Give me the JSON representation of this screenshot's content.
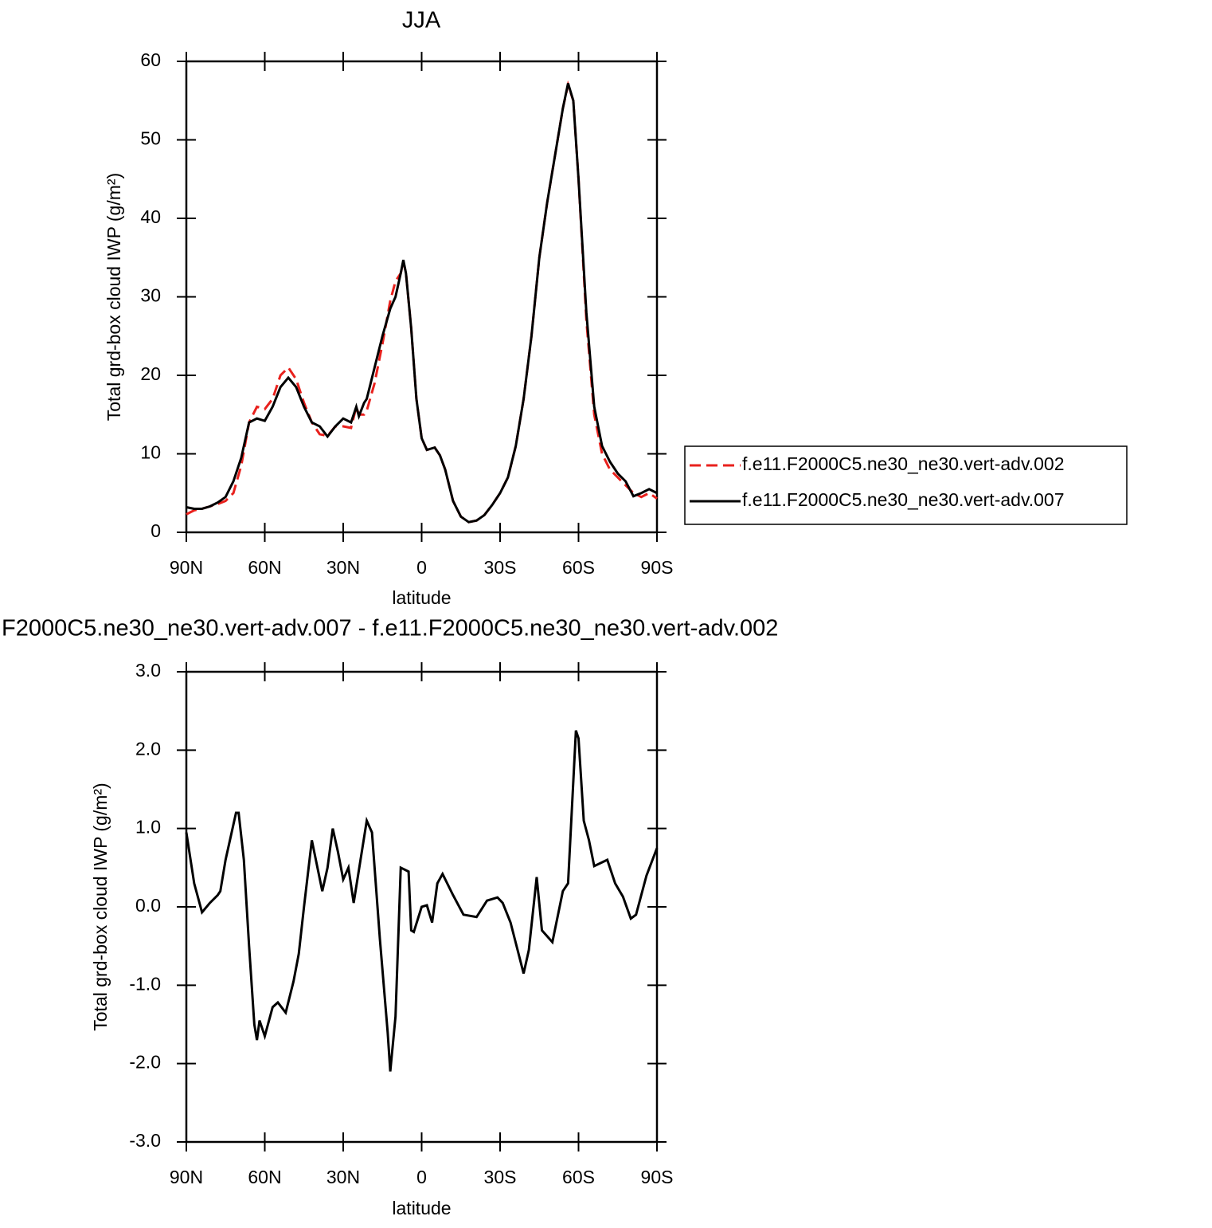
{
  "chart_data": [
    {
      "type": "line",
      "title": "JJA",
      "xlabel": "latitude",
      "ylabel": "Total grd-box cloud IWP (g/m²)",
      "xlim": [
        90,
        -90
      ],
      "xticks": [
        {
          "value": 90,
          "label": "90N"
        },
        {
          "value": 60,
          "label": "60N"
        },
        {
          "value": 30,
          "label": "30N"
        },
        0,
        {
          "value": -30,
          "label": "30S"
        },
        {
          "value": -60,
          "label": "60S"
        },
        {
          "value": -90,
          "label": "90S"
        }
      ],
      "ylim": [
        0,
        60
      ],
      "yticks": [
        0,
        10,
        20,
        30,
        40,
        50,
        60
      ],
      "legend": "right",
      "x": [
        90,
        87,
        84,
        81,
        78,
        75,
        72,
        69,
        66,
        63,
        60,
        57,
        54,
        51,
        48,
        45,
        42,
        39,
        36,
        33,
        30,
        27,
        25,
        24,
        22,
        21,
        18,
        15,
        12,
        10,
        8,
        7,
        6,
        4,
        2,
        0,
        -2,
        -5,
        -7,
        -9,
        -12,
        -15,
        -18,
        -21,
        -24,
        -27,
        -30,
        -33,
        -36,
        -39,
        -42,
        -45,
        -48,
        -51,
        -54,
        -56,
        -58,
        -60,
        -63,
        -66,
        -69,
        -72,
        -75,
        -78,
        -81,
        -84,
        -87,
        -90
      ],
      "series": [
        {
          "name": "f.e11.F2000C5.ne30_ne30.vert-adv.002",
          "color": "#e8211d",
          "line_style": "dashed",
          "values": [
            2.3,
            2.8,
            3.0,
            3.3,
            3.6,
            4.0,
            5.0,
            8.5,
            14,
            16,
            15.7,
            17,
            20,
            21,
            19.5,
            16.5,
            14,
            12.5,
            12.3,
            13.5,
            13.5,
            13.3,
            16,
            15,
            15,
            15.5,
            19,
            24,
            29.5,
            32,
            33,
            34.5,
            33,
            26,
            17,
            12,
            10.5,
            10.8,
            9.8,
            8,
            4,
            2,
            1.3,
            1.5,
            2.2,
            3.5,
            5,
            7,
            11,
            17,
            25,
            35,
            42,
            48,
            54,
            57,
            55,
            45,
            27,
            15,
            10,
            8,
            7,
            6,
            5,
            4.5,
            5,
            4.3
          ]
        },
        {
          "name": "f.e11.F2000C5.ne30_ne30.vert-adv.007",
          "color": "#000000",
          "line_style": "solid",
          "values": [
            3.2,
            3.0,
            3.0,
            3.3,
            3.8,
            4.5,
            6.5,
            9.5,
            14,
            14.5,
            14.2,
            16,
            18.5,
            19.7,
            18.5,
            16,
            14,
            13.5,
            12.2,
            13.5,
            14.5,
            14,
            16,
            14.8,
            16.5,
            17,
            21,
            25,
            28.5,
            30,
            33,
            34.7,
            33,
            26,
            17,
            12,
            10.5,
            10.8,
            9.8,
            8,
            4,
            2,
            1.3,
            1.5,
            2.2,
            3.5,
            5,
            7,
            11,
            17,
            25,
            35,
            42,
            48,
            54,
            57.2,
            55,
            45,
            28,
            16,
            11,
            9,
            7.5,
            6.5,
            4.6,
            5.0,
            5.5,
            5.0
          ]
        }
      ]
    },
    {
      "type": "line",
      "title": "F2000C5.ne30_ne30.vert-adv.007 - f.e11.F2000C5.ne30_ne30.vert-adv.002",
      "xlabel": "latitude",
      "ylabel": "Total grd-box cloud IWP (g/m²)",
      "xlim": [
        90,
        -90
      ],
      "xticks": [
        {
          "value": 90,
          "label": "90N"
        },
        {
          "value": 60,
          "label": "60N"
        },
        {
          "value": 30,
          "label": "30N"
        },
        0,
        {
          "value": -30,
          "label": "30S"
        },
        {
          "value": -60,
          "label": "60S"
        },
        {
          "value": -90,
          "label": "90S"
        }
      ],
      "ylim": [
        -3,
        3
      ],
      "yticks": [
        {
          "value": -3,
          "label": "-3.0"
        },
        {
          "value": -2,
          "label": "-2.0"
        },
        {
          "value": -1,
          "label": "-1.0"
        },
        {
          "value": 0,
          "label": "0.0"
        },
        {
          "value": 1,
          "label": "1.0"
        },
        {
          "value": 2,
          "label": "2.0"
        },
        {
          "value": 3,
          "label": "3.0"
        }
      ],
      "color": "#000000",
      "x": [
        90,
        87,
        84,
        81,
        78,
        77,
        75,
        71,
        70,
        68,
        66,
        64,
        63,
        62,
        60,
        57,
        55,
        52,
        49,
        47,
        45,
        42,
        38,
        36,
        34,
        32,
        30,
        28,
        26,
        21,
        19,
        16,
        13,
        12,
        10,
        8,
        5,
        4,
        3,
        0,
        -2,
        -4,
        -6,
        -8,
        -12,
        -16,
        -21,
        -25,
        -29,
        -31,
        -34,
        -39,
        -41,
        -44,
        -46,
        -50,
        -54,
        -56,
        -59,
        -60,
        -62,
        -64,
        -66,
        -71,
        -74,
        -77,
        -80,
        -82,
        -86,
        -90
      ],
      "values": [
        0.95,
        0.3,
        -0.07,
        0.05,
        0.15,
        0.2,
        0.6,
        1.2,
        1.2,
        0.6,
        -0.5,
        -1.5,
        -1.7,
        -1.45,
        -1.65,
        -1.28,
        -1.22,
        -1.35,
        -0.95,
        -0.6,
        0.0,
        0.85,
        0.2,
        0.5,
        1.0,
        0.7,
        0.35,
        0.5,
        0.05,
        1.1,
        0.95,
        -0.4,
        -1.6,
        -2.1,
        -1.4,
        0.5,
        0.45,
        -0.3,
        -0.32,
        0.0,
        0.02,
        -0.2,
        0.3,
        0.42,
        0.15,
        -0.1,
        -0.13,
        0.08,
        0.12,
        0.05,
        -0.2,
        -0.85,
        -0.55,
        0.38,
        -0.3,
        -0.45,
        0.2,
        0.3,
        2.25,
        2.15,
        1.1,
        0.85,
        0.52,
        0.6,
        0.3,
        0.13,
        -0.15,
        -0.1,
        0.4,
        0.75
      ]
    }
  ]
}
